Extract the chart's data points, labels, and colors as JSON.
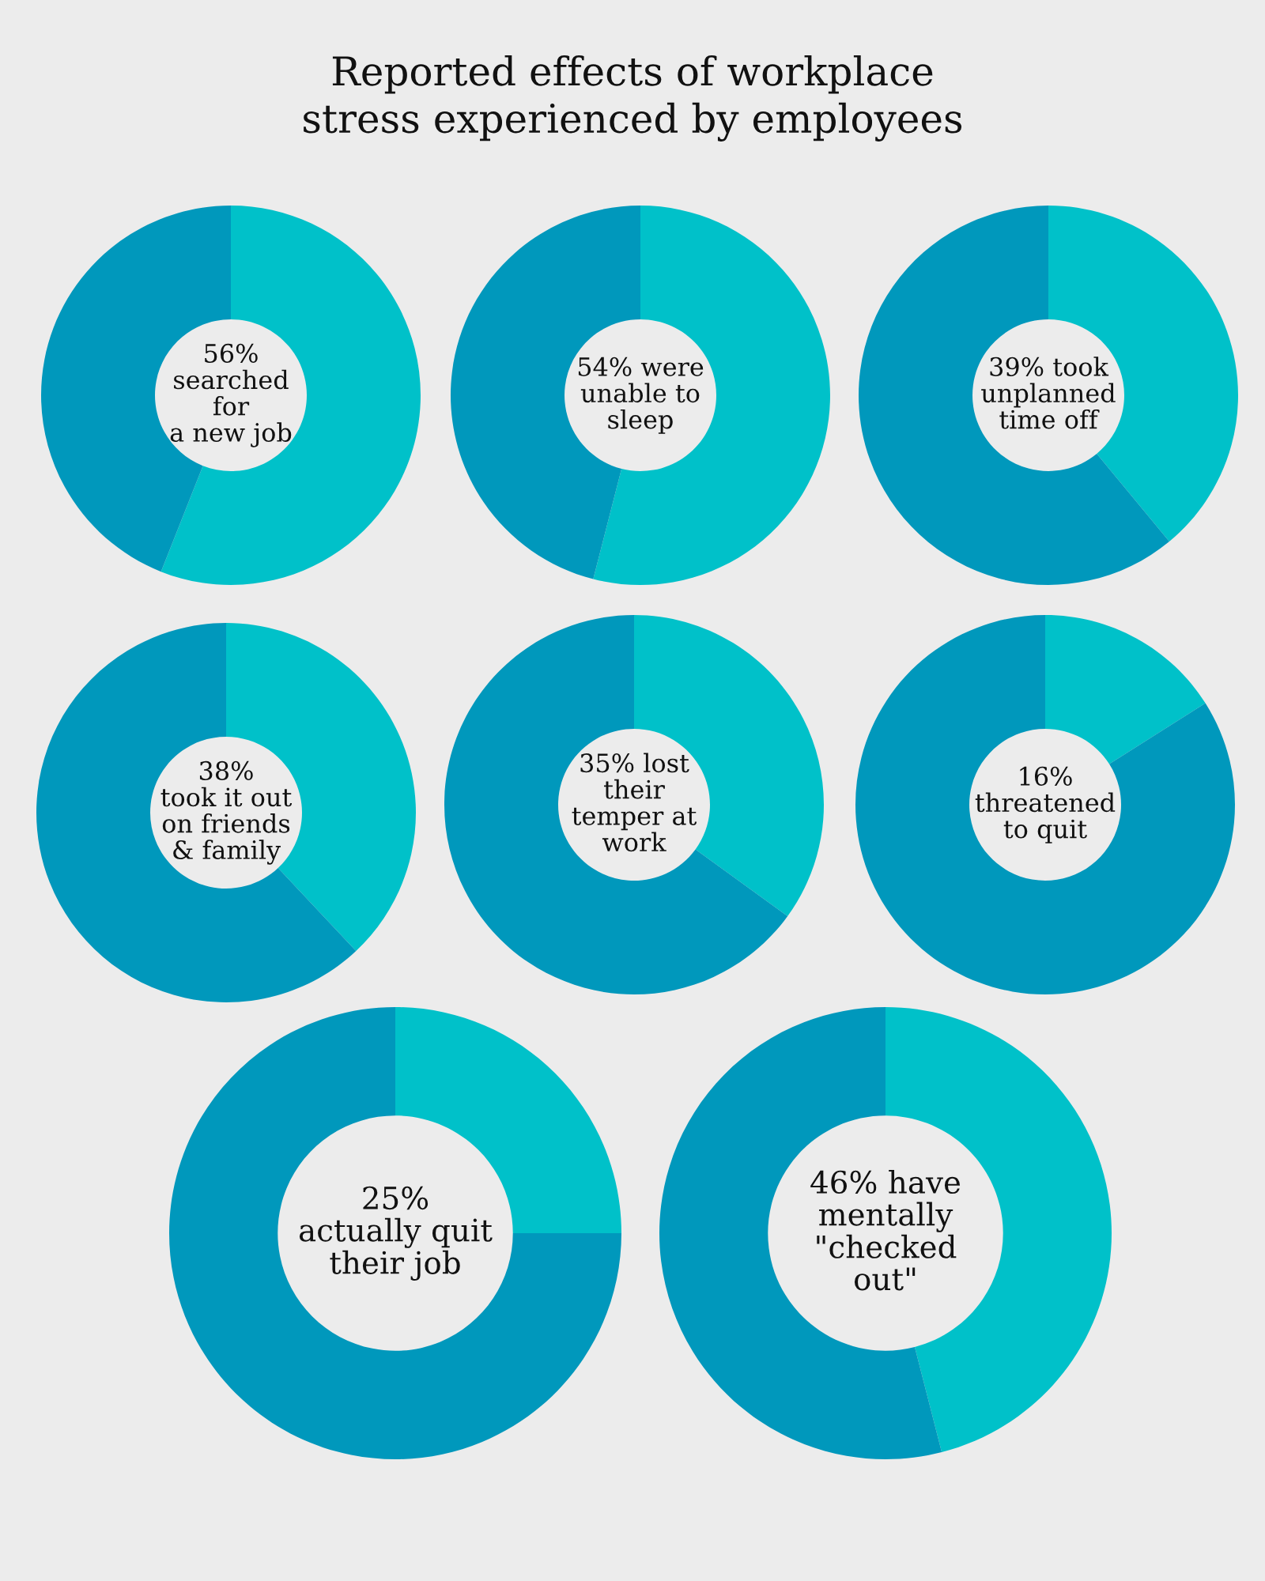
{
  "chart_data": [
    {
      "type": "donut",
      "title": "Reported effects of workplace\nstress experienced by employees",
      "categories": [
        null,
        null
      ],
      "values": [
        56,
        44
      ],
      "colors": [
        "#00c1c9",
        "#0098bc"
      ],
      "annotations": [
        "56%\nsearched\nfor\na new job"
      ]
    },
    {
      "type": "donut",
      "categories": [
        null,
        null
      ],
      "values": [
        54,
        46
      ],
      "colors": [
        "#00c1c9",
        "#0098bc"
      ],
      "annotations": [
        "54% were\nunable to\nsleep"
      ]
    },
    {
      "type": "donut",
      "categories": [
        null,
        null
      ],
      "values": [
        39,
        61
      ],
      "colors": [
        "#00c1c9",
        "#0098bc"
      ],
      "annotations": [
        "39% took\nunplanned\ntime off"
      ]
    },
    {
      "type": "donut",
      "categories": [
        null,
        null
      ],
      "values": [
        38,
        62
      ],
      "colors": [
        "#00c1c9",
        "#0098bc"
      ],
      "annotations": [
        "38%\ntook it out\non friends\n& family"
      ]
    },
    {
      "type": "donut",
      "categories": [
        null,
        null
      ],
      "values": [
        35,
        65
      ],
      "colors": [
        "#00c1c9",
        "#0098bc"
      ],
      "annotations": [
        "35% lost\ntheir\ntemper at\nwork"
      ]
    },
    {
      "type": "donut",
      "categories": [
        null,
        null
      ],
      "values": [
        16,
        84
      ],
      "colors": [
        "#00c1c9",
        "#0098bc"
      ],
      "annotations": [
        "16%\nthreatened\nto quit"
      ]
    },
    {
      "type": "donut",
      "categories": [
        null,
        null
      ],
      "values": [
        25,
        75
      ],
      "colors": [
        "#00c1c9",
        "#0098bc"
      ],
      "annotations": [
        "25%\nactually quit\ntheir job"
      ]
    },
    {
      "type": "donut",
      "categories": [
        null,
        null
      ],
      "values": [
        46,
        54
      ],
      "colors": [
        "#00c1c9",
        "#0098bc"
      ],
      "annotations": [
        "46% have\nmentally\n\"checked\nout\""
      ]
    }
  ]
}
